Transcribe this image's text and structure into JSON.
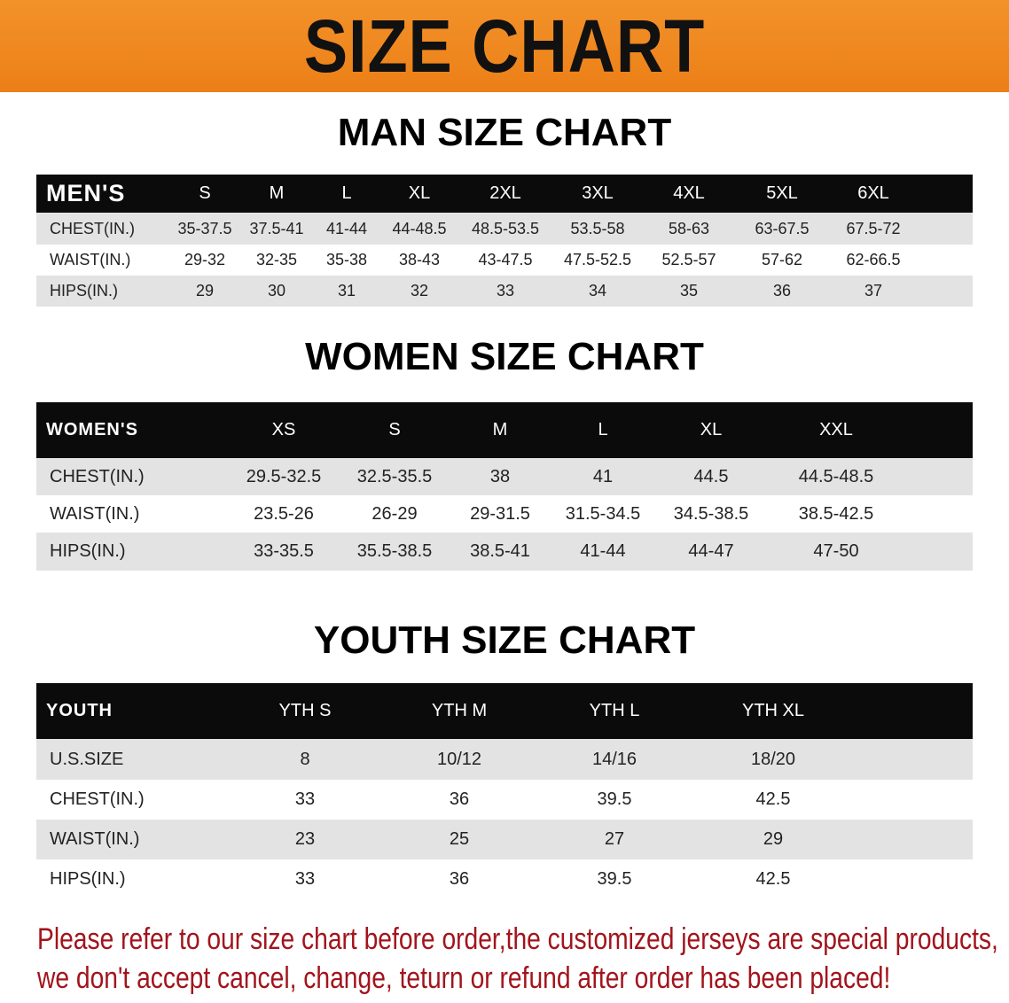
{
  "banner_title": "SIZE CHART",
  "men": {
    "title": "MAN SIZE CHART",
    "header": [
      "MEN'S",
      "S",
      "M",
      "L",
      "XL",
      "2XL",
      "3XL",
      "4XL",
      "5XL",
      "6XL"
    ],
    "rows": [
      [
        "CHEST(IN.)",
        "35-37.5",
        "37.5-41",
        "41-44",
        "44-48.5",
        "48.5-53.5",
        "53.5-58",
        "58-63",
        "63-67.5",
        "67.5-72"
      ],
      [
        "WAIST(IN.)",
        "29-32",
        "32-35",
        "35-38",
        "38-43",
        "43-47.5",
        "47.5-52.5",
        "52.5-57",
        "57-62",
        "62-66.5"
      ],
      [
        "HIPS(IN.)",
        "29",
        "30",
        "31",
        "32",
        "33",
        "34",
        "35",
        "36",
        "37"
      ]
    ]
  },
  "women": {
    "title": "WOMEN SIZE CHART",
    "header": [
      "WOMEN'S",
      "XS",
      "S",
      "M",
      "L",
      "XL",
      "XXL"
    ],
    "rows": [
      [
        "CHEST(IN.)",
        "29.5-32.5",
        "32.5-35.5",
        "38",
        "41",
        "44.5",
        "44.5-48.5"
      ],
      [
        "WAIST(IN.)",
        "23.5-26",
        "26-29",
        "29-31.5",
        "31.5-34.5",
        "34.5-38.5",
        "38.5-42.5"
      ],
      [
        "HIPS(IN.)",
        "33-35.5",
        "35.5-38.5",
        "38.5-41",
        "41-44",
        "44-47",
        "47-50"
      ]
    ]
  },
  "youth": {
    "title": "YOUTH SIZE CHART",
    "header": [
      "YOUTH",
      "YTH S",
      "YTH M",
      "YTH L",
      "YTH XL"
    ],
    "rows": [
      [
        "U.S.SIZE",
        "8",
        "10/12",
        "14/16",
        "18/20"
      ],
      [
        "CHEST(IN.)",
        "33",
        "36",
        "39.5",
        "42.5"
      ],
      [
        "WAIST(IN.)",
        "23",
        "25",
        "27",
        "29"
      ],
      [
        "HIPS(IN.)",
        "33",
        "36",
        "39.5",
        "42.5"
      ]
    ]
  },
  "note": {
    "line1": "Please refer to our size chart before order,the customized jerseys are special products,",
    "line2": "we don't accept cancel, change, teturn or refund after order has been placed!"
  },
  "colors": {
    "banner": "#ec7f17",
    "header_bg": "#0b0b0b",
    "row_gray": "#e3e3e3",
    "note_red": "#a2141c"
  }
}
